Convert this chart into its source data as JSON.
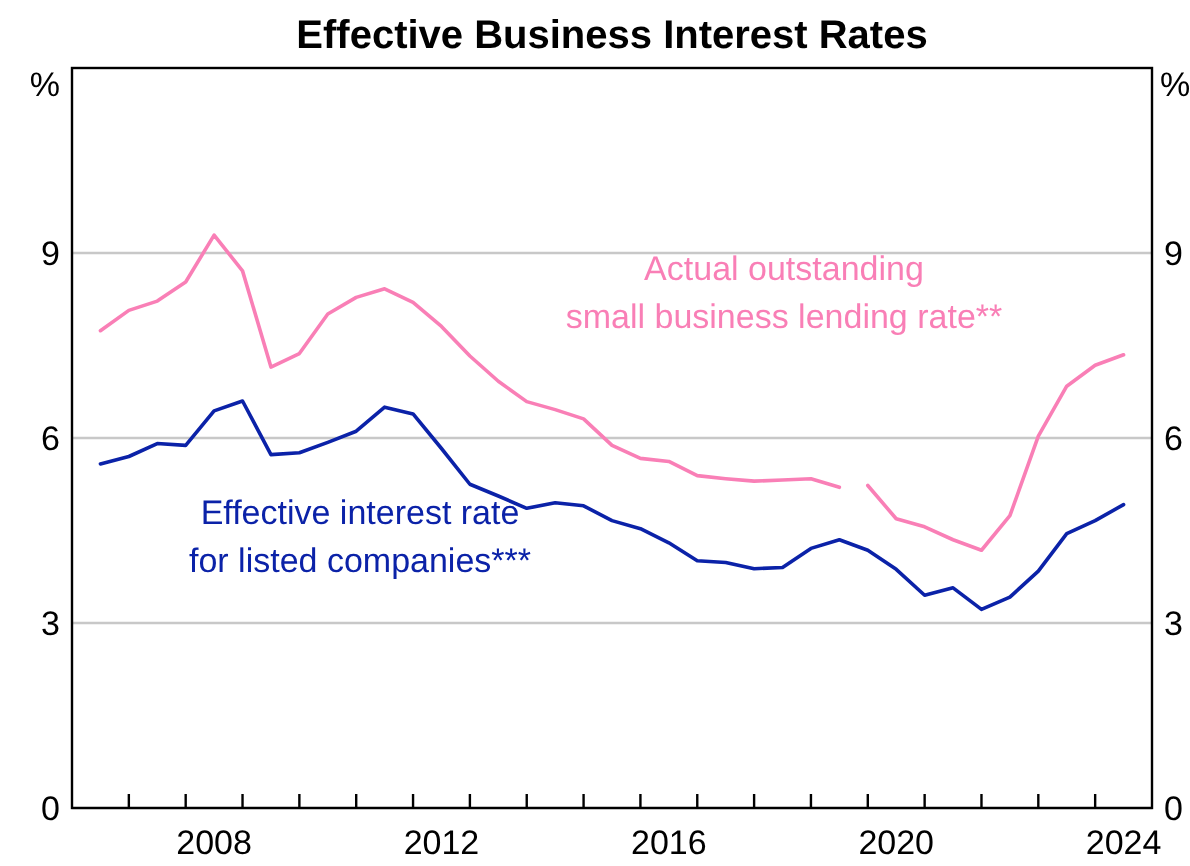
{
  "chart_data": {
    "type": "line",
    "title": "Effective Business Interest Rates",
    "ylabel": "%",
    "y2label": "%",
    "x": [
      2006.5,
      2007,
      2007.5,
      2008,
      2008.5,
      2009,
      2009.5,
      2010,
      2010.5,
      2011,
      2011.5,
      2012,
      2012.5,
      2013,
      2013.5,
      2014,
      2014.5,
      2015,
      2015.5,
      2016,
      2016.5,
      2017,
      2017.5,
      2018,
      2018.5,
      2019,
      2019.5,
      2020,
      2020.5,
      2021,
      2021.5,
      2022,
      2022.5,
      2023,
      2023.5,
      2024,
      2024.5
    ],
    "series": [
      {
        "name": "Actual outstanding\nsmall business lending rate**",
        "color": "#f97fb6",
        "x": [
          2006.5,
          2007,
          2007.5,
          2008,
          2008.5,
          2009,
          2009.5,
          2010,
          2010.5,
          2011,
          2011.5,
          2012,
          2012.5,
          2013,
          2013.5,
          2014,
          2014.5,
          2015,
          2015.5,
          2016,
          2016.5,
          2017,
          2017.5,
          2018,
          2018.5,
          2019,
          2019.5,
          2019.75,
          2020,
          2020.5,
          2021,
          2021.5,
          2022,
          2022.5,
          2023,
          2023.5,
          2024,
          2024.5
        ],
        "values": [
          7.74,
          8.07,
          8.22,
          8.53,
          9.29,
          8.71,
          7.15,
          7.37,
          8.01,
          8.28,
          8.42,
          8.2,
          7.81,
          7.33,
          6.92,
          6.59,
          6.46,
          6.31,
          5.88,
          5.67,
          5.62,
          5.39,
          5.34,
          5.3,
          5.32,
          5.34,
          5.2,
          null,
          5.23,
          4.69,
          4.56,
          4.35,
          4.18,
          4.74,
          6.03,
          6.84,
          7.18,
          7.35
        ]
      },
      {
        "name": "Effective interest rate\nfor listed companies***",
        "color": "#0b22a8",
        "values": [
          5.58,
          5.7,
          5.91,
          5.88,
          6.44,
          6.6,
          5.73,
          5.76,
          5.93,
          6.11,
          6.5,
          6.39,
          5.83,
          5.25,
          5.06,
          4.86,
          4.95,
          4.9,
          4.66,
          4.53,
          4.3,
          4.01,
          3.98,
          3.88,
          3.9,
          4.21,
          4.35,
          4.18,
          3.87,
          3.45,
          3.57,
          3.22,
          3.42,
          3.84,
          4.45,
          4.66,
          4.92
        ]
      }
    ],
    "xlim": [
      2006,
      2025
    ],
    "xticks": [
      {
        "value": 2007,
        "label": null
      },
      {
        "value": 2008,
        "label": null
      },
      {
        "value": 2008.5,
        "label": "2008"
      },
      {
        "value": 2009,
        "label": null
      },
      {
        "value": 2010,
        "label": null
      },
      {
        "value": 2011,
        "label": null
      },
      {
        "value": 2012,
        "label": null
      },
      {
        "value": 2012.5,
        "label": "2012"
      },
      {
        "value": 2013,
        "label": null
      },
      {
        "value": 2014,
        "label": null
      },
      {
        "value": 2015,
        "label": null
      },
      {
        "value": 2016,
        "label": null
      },
      {
        "value": 2016.5,
        "label": "2016"
      },
      {
        "value": 2017,
        "label": null
      },
      {
        "value": 2018,
        "label": null
      },
      {
        "value": 2019,
        "label": null
      },
      {
        "value": 2020,
        "label": null
      },
      {
        "value": 2020.5,
        "label": "2020"
      },
      {
        "value": 2021,
        "label": null
      },
      {
        "value": 2022,
        "label": null
      },
      {
        "value": 2023,
        "label": null
      },
      {
        "value": 2024,
        "label": null
      },
      {
        "value": 2024.5,
        "label": "2024"
      }
    ],
    "ylim": [
      0,
      12
    ],
    "yticks": [
      0,
      3,
      6,
      9
    ],
    "y2lim": [
      0,
      12
    ],
    "y2ticks": [
      0,
      3,
      6,
      9
    ],
    "grid": "y"
  }
}
